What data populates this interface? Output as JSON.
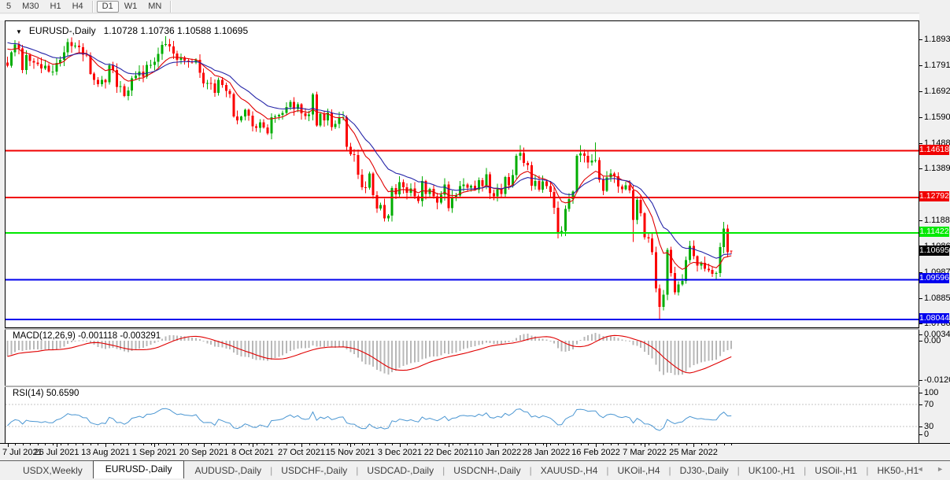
{
  "toolbar": {
    "timeframes": [
      {
        "label": "5",
        "active": false
      },
      {
        "label": "M30",
        "active": false
      },
      {
        "label": "H1",
        "active": false
      },
      {
        "label": "H4",
        "active": false
      },
      {
        "label": "D1",
        "active": true
      },
      {
        "label": "W1",
        "active": false
      },
      {
        "label": "MN",
        "active": false
      }
    ]
  },
  "chart": {
    "dropdown_glyph": "▼",
    "title_symbol": "EURUSD-,Daily",
    "title_ohlc": "1.10728 1.10736 1.10588 1.10695",
    "macd_label": "MACD(12,26,9) -0.001118 -0.003291",
    "rsi_label": "RSI(14) 50.6590"
  },
  "price_axis": {
    "ticks": [
      1.1893,
      1.1791,
      1.1692,
      1.159,
      1.1488,
      1.1389,
      1.1188,
      1.1086,
      1.0987,
      1.0885,
      1.0786
    ]
  },
  "macd_axis": [
    {
      "text": "0.003408",
      "value": 0.003408
    },
    {
      "text": "0.00",
      "value": 0
    },
    {
      "text": "-0.01205",
      "value": -0.01205
    }
  ],
  "rsi_axis": [
    {
      "text": "100",
      "value": 100
    },
    {
      "text": "70",
      "value": 70
    },
    {
      "text": "30",
      "value": 30
    },
    {
      "text": "0",
      "value": 0
    }
  ],
  "date_axis": [
    "7 Jul 2021",
    "26 Jul 2021",
    "13 Aug 2021",
    "1 Sep 2021",
    "20 Sep 2021",
    "8 Oct 2021",
    "27 Oct 2021",
    "15 Nov 2021",
    "3 Dec 2021",
    "22 Dec 2021",
    "10 Jan 2022",
    "28 Jan 2022",
    "16 Feb 2022",
    "7 Mar 2022",
    "25 Mar 2022"
  ],
  "tabs": {
    "items": [
      {
        "label": "USDX,Weekly",
        "active": false
      },
      {
        "label": "EURUSD-,Daily",
        "active": true
      },
      {
        "label": "AUDUSD-,Daily",
        "active": false
      },
      {
        "label": "USDCHF-,Daily",
        "active": false
      },
      {
        "label": "USDCAD-,Daily",
        "active": false
      },
      {
        "label": "USDCNH-,Daily",
        "active": false
      },
      {
        "label": "XAUUSD-,H4",
        "active": false
      },
      {
        "label": "UKOil-,H4",
        "active": false
      },
      {
        "label": "DJ30-,Daily",
        "active": false
      },
      {
        "label": "UK100-,H1",
        "active": false
      },
      {
        "label": "USOil-,H1",
        "active": false
      },
      {
        "label": "HK50-,H1",
        "active": false
      }
    ],
    "scroll_left": "◄",
    "scroll_right": "►"
  },
  "chart_data": {
    "type": "candlestick",
    "symbol": "EURUSD-",
    "timeframe": "Daily",
    "current_ohlc": {
      "open": 1.10728,
      "high": 1.10736,
      "low": 1.10588,
      "close": 1.10695
    },
    "y_ticks": [
      1.1893,
      1.1791,
      1.1692,
      1.159,
      1.1488,
      1.1389,
      1.1188,
      1.1086,
      1.0987,
      1.0885,
      1.0786
    ],
    "x_labels": [
      "7 Jul 2021",
      "26 Jul 2021",
      "13 Aug 2021",
      "1 Sep 2021",
      "20 Sep 2021",
      "8 Oct 2021",
      "27 Oct 2021",
      "15 Nov 2021",
      "3 Dec 2021",
      "22 Dec 2021",
      "10 Jan 2022",
      "28 Jan 2022",
      "16 Feb 2022",
      "7 Mar 2022",
      "25 Mar 2022"
    ],
    "closes": [
      1.1793,
      1.1845,
      1.1876,
      1.1861,
      1.1776,
      1.1835,
      1.1812,
      1.1806,
      1.18,
      1.1782,
      1.1794,
      1.177,
      1.1771,
      1.1804,
      1.1816,
      1.1845,
      1.1886,
      1.187,
      1.1872,
      1.1865,
      1.1836,
      1.1833,
      1.1762,
      1.1738,
      1.1721,
      1.1738,
      1.1729,
      1.1795,
      1.1777,
      1.171,
      1.1713,
      1.1675,
      1.1697,
      1.1745,
      1.1755,
      1.177,
      1.1751,
      1.1796,
      1.1796,
      1.1808,
      1.184,
      1.1874,
      1.1878,
      1.1868,
      1.1841,
      1.1817,
      1.1825,
      1.1813,
      1.181,
      1.1805,
      1.1816,
      1.1766,
      1.1725,
      1.1726,
      1.1725,
      1.1687,
      1.1738,
      1.1719,
      1.1695,
      1.1683,
      1.1596,
      1.158,
      1.1595,
      1.1621,
      1.1598,
      1.1557,
      1.1551,
      1.1573,
      1.1553,
      1.153,
      1.1592,
      1.1596,
      1.1601,
      1.161,
      1.1633,
      1.1652,
      1.1624,
      1.1643,
      1.1608,
      1.1597,
      1.1603,
      1.1682,
      1.156,
      1.1606,
      1.158,
      1.1611,
      1.1554,
      1.1567,
      1.1589,
      1.1593,
      1.1477,
      1.1448,
      1.1445,
      1.1369,
      1.1319,
      1.1318,
      1.1374,
      1.1289,
      1.1237,
      1.125,
      1.1199,
      1.121,
      1.1317,
      1.1292,
      1.1339,
      1.1319,
      1.1298,
      1.1315,
      1.1284,
      1.1266,
      1.1344,
      1.1293,
      1.1313,
      1.1284,
      1.126,
      1.129,
      1.133,
      1.1238,
      1.1281,
      1.1288,
      1.1324,
      1.133,
      1.1318,
      1.1326,
      1.1311,
      1.1348,
      1.1325,
      1.137,
      1.1297,
      1.1285,
      1.1312,
      1.1294,
      1.1359,
      1.1327,
      1.1367,
      1.1443,
      1.1453,
      1.1414,
      1.1406,
      1.1325,
      1.1344,
      1.131,
      1.1343,
      1.1325,
      1.1301,
      1.124,
      1.1145,
      1.115,
      1.1235,
      1.1273,
      1.1303,
      1.1443,
      1.1452,
      1.1442,
      1.1416,
      1.1424,
      1.1426,
      1.1349,
      1.1306,
      1.1358,
      1.1374,
      1.1362,
      1.1323,
      1.1312,
      1.1327,
      1.1307,
      1.1193,
      1.127,
      1.1219,
      1.1125,
      1.112,
      1.1066,
      1.0926,
      1.0854,
      1.0901,
      1.1076,
      1.0985,
      1.0911,
      1.0941,
      1.0955,
      1.1036,
      1.1091,
      1.1051,
      1.1015,
      1.1026,
      1.1003,
      1.0997,
      1.0982,
      1.0985,
      1.1086,
      1.1158,
      1.1067,
      1.10695
    ],
    "wick_overrides": {
      "42": [
        1.1909,
        null
      ],
      "69": [
        null,
        1.1524
      ],
      "100": [
        null,
        1.1186
      ],
      "136": [
        1.1483,
        null
      ],
      "146": [
        null,
        1.1121
      ],
      "152": [
        1.1483,
        null
      ],
      "156": [
        1.1495,
        null
      ],
      "166": [
        null,
        1.1106
      ],
      "173": [
        null,
        1.0806
      ],
      "190": [
        1.1185,
        null
      ],
      "192": [
        1.10736,
        1.10588
      ]
    },
    "open_overrides": {
      "192": 1.10728
    },
    "levels": [
      {
        "price": 1.14618,
        "color": "#f00000"
      },
      {
        "price": 1.12792,
        "color": "#f00000"
      },
      {
        "price": 1.11422,
        "color": "#00e800"
      },
      {
        "price": 1.09596,
        "color": "#0000ee"
      },
      {
        "price": 1.08044,
        "color": "#0000ee"
      }
    ],
    "current_price_badge_color": "#000000",
    "ma": [
      {
        "period": 10,
        "color": "#e00000"
      },
      {
        "period": 20,
        "color": "#2525a8"
      }
    ],
    "macd": {
      "fast": 12,
      "slow": 26,
      "signal": 9,
      "main_value": -0.001118,
      "signal_value": -0.003291,
      "hist_color": "#b8b8b8",
      "line_color": "#e00000"
    },
    "rsi": {
      "period": 14,
      "value": 50.659,
      "color": "#4a96d2",
      "levels": [
        70,
        30
      ],
      "level_line_color": "#c4c4c4"
    },
    "bull_color": "#00ad00",
    "bear_color": "#fb0000"
  }
}
